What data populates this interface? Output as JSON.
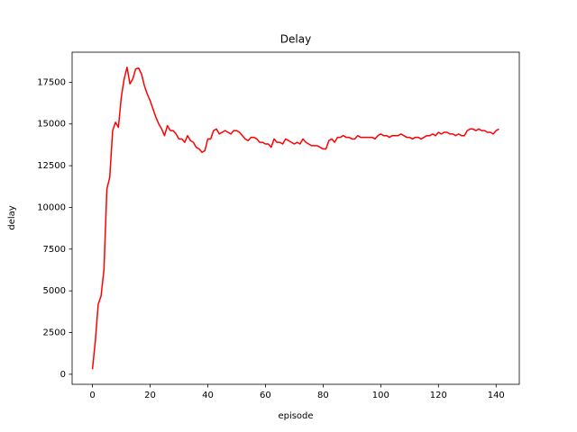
{
  "chart_data": {
    "type": "line",
    "title": "Delay",
    "x_label": "episode",
    "y_label": "delay",
    "x": [
      0,
      1,
      2,
      3,
      4,
      5,
      6,
      7,
      8,
      9,
      10,
      11,
      12,
      13,
      14,
      15,
      16,
      17,
      18,
      19,
      20,
      21,
      22,
      23,
      24,
      25,
      26,
      27,
      28,
      29,
      30,
      31,
      32,
      33,
      34,
      35,
      36,
      37,
      38,
      39,
      40,
      41,
      42,
      43,
      44,
      45,
      46,
      47,
      48,
      49,
      50,
      51,
      52,
      53,
      54,
      55,
      56,
      57,
      58,
      59,
      60,
      61,
      62,
      63,
      64,
      65,
      66,
      67,
      68,
      69,
      70,
      71,
      72,
      73,
      74,
      75,
      76,
      77,
      78,
      79,
      80,
      81,
      82,
      83,
      84,
      85,
      86,
      87,
      88,
      89,
      90,
      91,
      92,
      93,
      94,
      95,
      96,
      97,
      98,
      99,
      100,
      101,
      102,
      103,
      104,
      105,
      106,
      107,
      108,
      109,
      110,
      111,
      112,
      113,
      114,
      115,
      116,
      117,
      118,
      119,
      120,
      121,
      122,
      123,
      124,
      125,
      126,
      127,
      128,
      129,
      130,
      131,
      132,
      133,
      134,
      135,
      136,
      137,
      138,
      139,
      140,
      141
    ],
    "series": [
      {
        "name": "delay",
        "color": "#ff0000",
        "values": [
          300,
          2000,
          4200,
          4700,
          6300,
          11100,
          11800,
          14600,
          15100,
          14800,
          16600,
          17700,
          18400,
          17400,
          17700,
          18300,
          18350,
          18000,
          17300,
          16800,
          16400,
          15900,
          15400,
          15000,
          14700,
          14300,
          14900,
          14600,
          14600,
          14400,
          14100,
          14100,
          13900,
          14300,
          14000,
          13900,
          13600,
          13500,
          13300,
          13400,
          14100,
          14100,
          14600,
          14700,
          14400,
          14500,
          14600,
          14500,
          14400,
          14600,
          14600,
          14500,
          14300,
          14100,
          14000,
          14200,
          14200,
          14100,
          13900,
          13900,
          13800,
          13800,
          13600,
          14100,
          13900,
          13900,
          13800,
          14100,
          14000,
          13900,
          13800,
          13900,
          13800,
          14100,
          13900,
          13800,
          13700,
          13700,
          13700,
          13600,
          13500,
          13500,
          14000,
          14100,
          13900,
          14200,
          14200,
          14300,
          14200,
          14200,
          14100,
          14100,
          14300,
          14200,
          14200,
          14200,
          14200,
          14200,
          14100,
          14300,
          14400,
          14300,
          14300,
          14200,
          14300,
          14300,
          14300,
          14400,
          14300,
          14200,
          14200,
          14100,
          14200,
          14200,
          14100,
          14200,
          14300,
          14300,
          14400,
          14300,
          14500,
          14400,
          14500,
          14500,
          14400,
          14400,
          14300,
          14400,
          14300,
          14300,
          14600,
          14700,
          14700,
          14600,
          14700,
          14600,
          14600,
          14500,
          14500,
          14400,
          14600,
          14700
        ]
      }
    ],
    "xlim": [
      -7.05,
      148.05
    ],
    "xticks": [
      0,
      20,
      40,
      60,
      80,
      100,
      120,
      140
    ],
    "ylim": [
      -600,
      19300
    ],
    "yticks": [
      0,
      2500,
      5000,
      7500,
      10000,
      12500,
      15000,
      17500
    ]
  }
}
